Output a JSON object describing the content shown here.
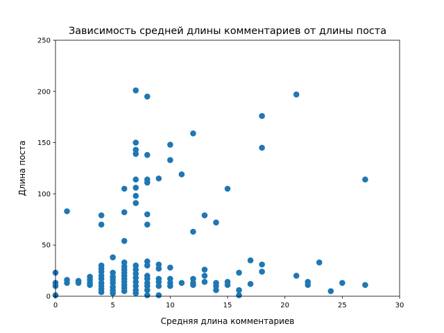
{
  "chart_data": {
    "type": "scatter",
    "title": "Зависимость средней длины комментариев от длины поста",
    "xlabel": "Средняя длина комментариев",
    "ylabel": "Длина поста",
    "xlim": [
      0,
      30
    ],
    "ylim": [
      0,
      250
    ],
    "xticks": [
      0,
      5,
      10,
      15,
      20,
      25,
      30
    ],
    "yticks": [
      0,
      50,
      100,
      150,
      200,
      250
    ],
    "grid": false,
    "color": "#1f77b4",
    "points": [
      [
        0,
        23
      ],
      [
        0,
        13
      ],
      [
        0,
        10
      ],
      [
        0,
        1
      ],
      [
        1,
        83
      ],
      [
        1,
        16
      ],
      [
        1,
        13
      ],
      [
        2,
        15
      ],
      [
        2,
        13
      ],
      [
        3,
        19
      ],
      [
        3,
        16
      ],
      [
        3,
        13
      ],
      [
        3,
        11
      ],
      [
        4,
        79
      ],
      [
        4,
        70
      ],
      [
        4,
        30
      ],
      [
        4,
        27
      ],
      [
        4,
        24
      ],
      [
        4,
        20
      ],
      [
        4,
        17
      ],
      [
        4,
        13
      ],
      [
        4,
        10
      ],
      [
        4,
        7
      ],
      [
        4,
        4
      ],
      [
        5,
        38
      ],
      [
        5,
        23
      ],
      [
        5,
        19
      ],
      [
        5,
        16
      ],
      [
        5,
        13
      ],
      [
        5,
        9
      ],
      [
        5,
        6
      ],
      [
        5,
        3
      ],
      [
        6,
        105
      ],
      [
        6,
        82
      ],
      [
        6,
        54
      ],
      [
        6,
        33
      ],
      [
        6,
        29
      ],
      [
        6,
        26
      ],
      [
        6,
        23
      ],
      [
        6,
        20
      ],
      [
        6,
        17
      ],
      [
        6,
        14
      ],
      [
        6,
        11
      ],
      [
        6,
        8
      ],
      [
        6,
        5
      ],
      [
        7,
        201
      ],
      [
        7,
        150
      ],
      [
        7,
        143
      ],
      [
        7,
        139
      ],
      [
        7,
        114
      ],
      [
        7,
        106
      ],
      [
        7,
        98
      ],
      [
        7,
        91
      ],
      [
        7,
        30
      ],
      [
        7,
        26
      ],
      [
        7,
        22
      ],
      [
        7,
        18
      ],
      [
        7,
        14
      ],
      [
        7,
        10
      ],
      [
        7,
        6
      ],
      [
        7,
        3
      ],
      [
        8,
        195
      ],
      [
        8,
        138
      ],
      [
        8,
        114
      ],
      [
        8,
        111
      ],
      [
        8,
        80
      ],
      [
        8,
        70
      ],
      [
        8,
        34
      ],
      [
        8,
        30
      ],
      [
        8,
        20
      ],
      [
        8,
        17
      ],
      [
        8,
        13
      ],
      [
        8,
        10
      ],
      [
        8,
        6
      ],
      [
        8,
        1
      ],
      [
        9,
        115
      ],
      [
        9,
        31
      ],
      [
        9,
        27
      ],
      [
        9,
        17
      ],
      [
        9,
        14
      ],
      [
        9,
        10
      ],
      [
        9,
        1
      ],
      [
        10,
        148
      ],
      [
        10,
        133
      ],
      [
        10,
        28
      ],
      [
        10,
        17
      ],
      [
        10,
        13
      ],
      [
        10,
        10
      ],
      [
        11,
        119
      ],
      [
        11,
        13
      ],
      [
        12,
        159
      ],
      [
        12,
        63
      ],
      [
        12,
        17
      ],
      [
        12,
        13
      ],
      [
        12,
        11
      ],
      [
        13,
        79
      ],
      [
        13,
        26
      ],
      [
        13,
        20
      ],
      [
        13,
        14
      ],
      [
        14,
        72
      ],
      [
        14,
        13
      ],
      [
        14,
        10
      ],
      [
        14,
        6
      ],
      [
        15,
        105
      ],
      [
        15,
        14
      ],
      [
        15,
        11
      ],
      [
        16,
        23
      ],
      [
        16,
        6
      ],
      [
        16,
        1
      ],
      [
        17,
        35
      ],
      [
        17,
        12
      ],
      [
        18,
        176
      ],
      [
        18,
        145
      ],
      [
        18,
        31
      ],
      [
        18,
        24
      ],
      [
        21,
        197
      ],
      [
        21,
        20
      ],
      [
        22,
        14
      ],
      [
        22,
        11
      ],
      [
        23,
        33
      ],
      [
        24,
        5
      ],
      [
        25,
        13
      ],
      [
        27,
        114
      ],
      [
        27,
        11
      ]
    ]
  }
}
